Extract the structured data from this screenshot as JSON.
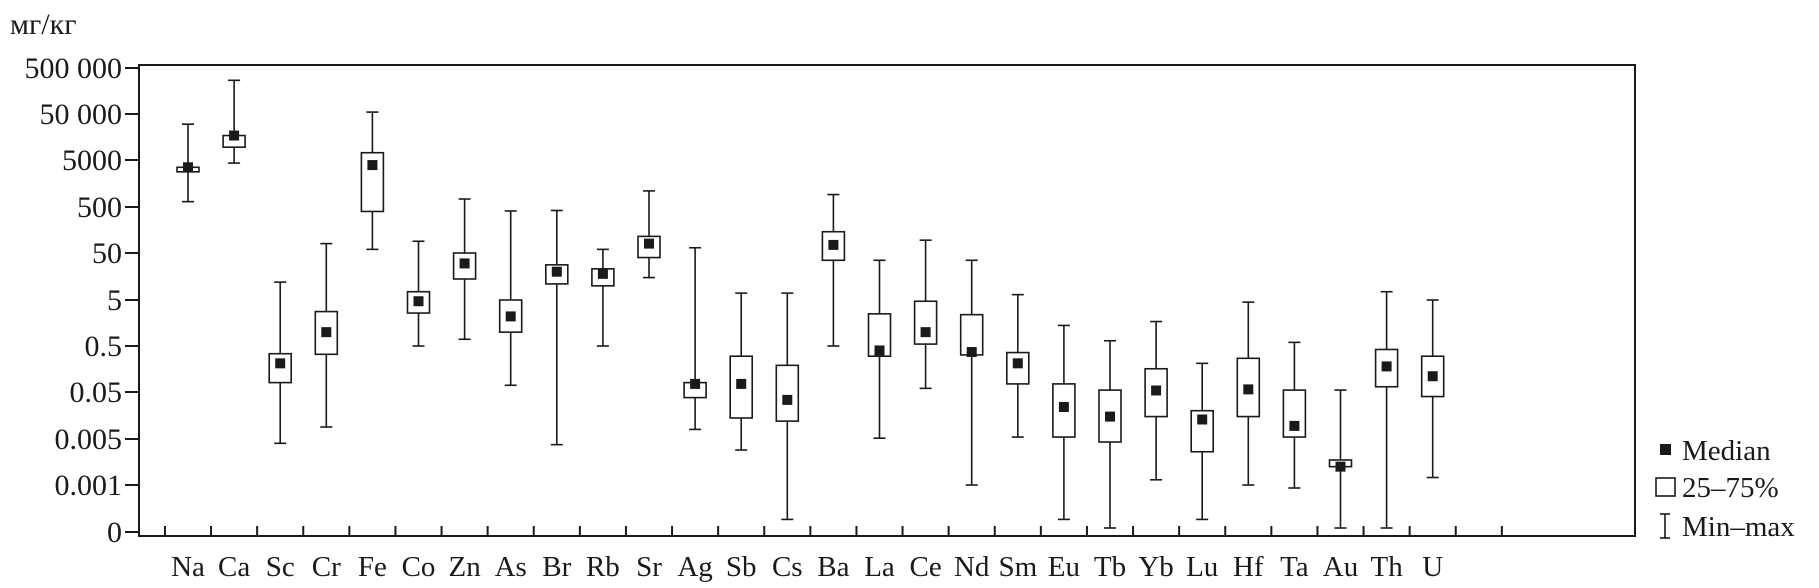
{
  "chart_data": {
    "type": "boxplot",
    "unit_label": "мг/кг",
    "y_scale": "categorical-log",
    "y_ticks": [
      "500 000",
      "50 000",
      "5000",
      "500",
      "50",
      "5",
      "0.5",
      "0.05",
      "0.005",
      "0.001",
      "0"
    ],
    "y_tick_values": [
      500000,
      50000,
      5000,
      500,
      50,
      5,
      0.5,
      0.05,
      0.005,
      0.001,
      0
    ],
    "categories": [
      "Na",
      "Ca",
      "Sc",
      "Cr",
      "Fe",
      "Co",
      "Zn",
      "As",
      "Br",
      "Rb",
      "Sr",
      "Ag",
      "Sb",
      "Cs",
      "Ba",
      "La",
      "Ce",
      "Nd",
      "Sm",
      "Eu",
      "Tb",
      "Yb",
      "Lu",
      "Hf",
      "Ta",
      "Au",
      "Th",
      "U"
    ],
    "series": [
      {
        "name": "Median",
        "values": [
          3500,
          17000,
          0.21,
          1.0,
          3900,
          4.7,
          30,
          2.2,
          20,
          18,
          80,
          0.075,
          0.075,
          0.034,
          75,
          0.4,
          1.0,
          0.37,
          0.21,
          0.024,
          0.015,
          0.054,
          0.013,
          0.057,
          0.0095,
          0.0019,
          0.18,
          0.11
        ]
      },
      {
        "name": "25–75%",
        "q1": [
          2800,
          9500,
          0.08,
          0.33,
          400,
          2.6,
          14,
          1.0,
          11,
          10,
          40,
          0.038,
          0.014,
          0.012,
          35,
          0.3,
          0.55,
          0.32,
          0.075,
          0.0055,
          0.0045,
          0.015,
          0.0032,
          0.015,
          0.0055,
          0.0019,
          0.065,
          0.04
        ],
        "q3": [
          3500,
          17000,
          0.34,
          2.8,
          7200,
          7.5,
          50,
          5.0,
          28,
          23,
          115,
          0.08,
          0.3,
          0.19,
          145,
          2.5,
          4.7,
          2.4,
          0.36,
          0.075,
          0.055,
          0.16,
          0.02,
          0.27,
          0.055,
          0.0024,
          0.42,
          0.3
        ]
      },
      {
        "name": "Min–max",
        "min": [
          650,
          4300,
          0.0043,
          0.009,
          60,
          0.5,
          0.7,
          0.07,
          0.0041,
          0.5,
          15,
          0.008,
          0.0034,
          0.0003,
          0.5,
          0.0052,
          0.06,
          0.001,
          0.0055,
          0.0003,
          0.0002,
          0.0012,
          0.0003,
          0.001,
          0.0009,
          0.0002,
          0.0002,
          0.0013
        ],
        "max": [
          30000,
          270000,
          12,
          80,
          55000,
          90,
          740,
          410,
          420,
          60,
          1100,
          65,
          7,
          7,
          920,
          35,
          95,
          35,
          6.5,
          1.4,
          0.65,
          1.7,
          0.21,
          4.5,
          0.6,
          0.055,
          7.5,
          5
        ]
      }
    ],
    "legend": [
      {
        "label": "Median",
        "symbol": "square-filled"
      },
      {
        "label": "25–75%",
        "symbol": "box"
      },
      {
        "label": "Min–max",
        "symbol": "whisker"
      }
    ],
    "legend_position": "right",
    "grid": false,
    "colors": {
      "ink": "#1a1a1a",
      "background": "#ffffff"
    }
  }
}
